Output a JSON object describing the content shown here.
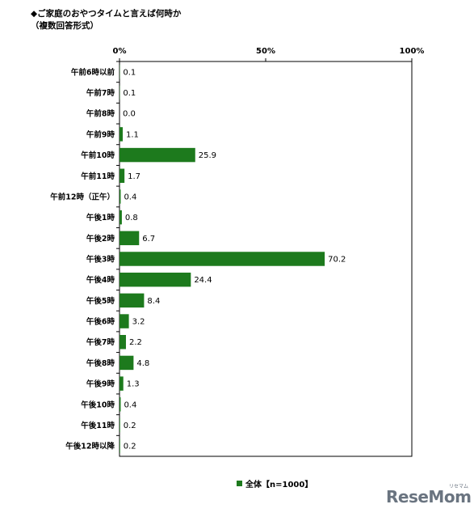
{
  "title": "◆ご家庭のおやつタイムと言えば何時か",
  "subtitle": "（複数回答形式）",
  "legend_label": "全体【n=1000】",
  "watermark": "ReseMom",
  "watermark_sub": "リセマム",
  "colors": {
    "bar": "#1d7a1d",
    "frame": "#000000"
  },
  "chart_data": {
    "type": "bar",
    "orientation": "horizontal",
    "xlim": [
      0,
      100
    ],
    "x_ticks": [
      "0%",
      "50%",
      "100%"
    ],
    "categories": [
      "午前6時以前",
      "午前7時",
      "午前8時",
      "午前9時",
      "午前10時",
      "午前11時",
      "午前12時（正午）",
      "午後1時",
      "午後2時",
      "午後3時",
      "午後4時",
      "午後5時",
      "午後6時",
      "午後7時",
      "午後8時",
      "午後9時",
      "午後10時",
      "午後11時",
      "午後12時以降"
    ],
    "series": [
      {
        "name": "全体【n=1000】",
        "values": [
          0.1,
          0.1,
          0.0,
          1.1,
          25.9,
          1.7,
          0.4,
          0.8,
          6.7,
          70.2,
          24.4,
          8.4,
          3.2,
          2.2,
          4.8,
          1.3,
          0.4,
          0.2,
          0.2
        ],
        "labels": [
          "0.1",
          "0.1",
          "0.0",
          "1.1",
          "25.9",
          "1.7",
          "0.4",
          "0.8",
          "6.7",
          "70.2",
          "24.4",
          "8.4",
          "3.2",
          "2.2",
          "4.8",
          "1.3",
          "0.4",
          "0.2",
          "0.2"
        ]
      }
    ]
  }
}
